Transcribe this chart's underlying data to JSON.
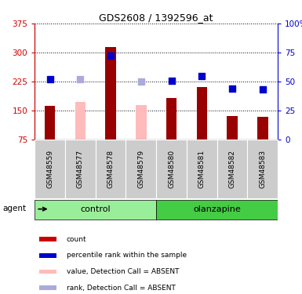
{
  "title": "GDS2608 / 1392596_at",
  "samples": [
    "GSM48559",
    "GSM48577",
    "GSM48578",
    "GSM48579",
    "GSM48580",
    "GSM48581",
    "GSM48582",
    "GSM48583"
  ],
  "bar_values": [
    163,
    173,
    315,
    165,
    183,
    210,
    137,
    133
  ],
  "bar_colors": [
    "#990000",
    "#ffbbbb",
    "#990000",
    "#ffbbbb",
    "#990000",
    "#990000",
    "#990000",
    "#990000"
  ],
  "dot_values": [
    52,
    52,
    72,
    50,
    51,
    55,
    44,
    43
  ],
  "dot_colors": [
    "#0000cc",
    "#aaaadd",
    "#0000cc",
    "#aaaadd",
    "#0000cc",
    "#0000cc",
    "#0000cc",
    "#0000cc"
  ],
  "ylim_left": [
    75,
    375
  ],
  "ylim_right": [
    0,
    100
  ],
  "yticks_left": [
    75,
    150,
    225,
    300,
    375
  ],
  "yticks_right": [
    0,
    25,
    50,
    75,
    100
  ],
  "ytick_labels_left": [
    "75",
    "150",
    "225",
    "300",
    "375"
  ],
  "ytick_labels_right": [
    "0",
    "25",
    "50",
    "75",
    "100%"
  ],
  "groups": [
    {
      "label": "control",
      "indices": [
        0,
        1,
        2,
        3
      ],
      "color": "#99ee99"
    },
    {
      "label": "olanzapine",
      "indices": [
        4,
        5,
        6,
        7
      ],
      "color": "#44cc44"
    }
  ],
  "agent_label": "agent",
  "legend_items": [
    {
      "label": "count",
      "color": "#cc0000"
    },
    {
      "label": "percentile rank within the sample",
      "color": "#0000cc"
    },
    {
      "label": "value, Detection Call = ABSENT",
      "color": "#ffbbbb"
    },
    {
      "label": "rank, Detection Call = ABSENT",
      "color": "#aaaadd"
    }
  ],
  "left_axis_color": "#cc0000",
  "right_axis_color": "#0000cc",
  "bar_width": 0.35,
  "dot_size": 28,
  "sample_bg_color": "#cccccc",
  "plot_bg_color": "#ffffff"
}
